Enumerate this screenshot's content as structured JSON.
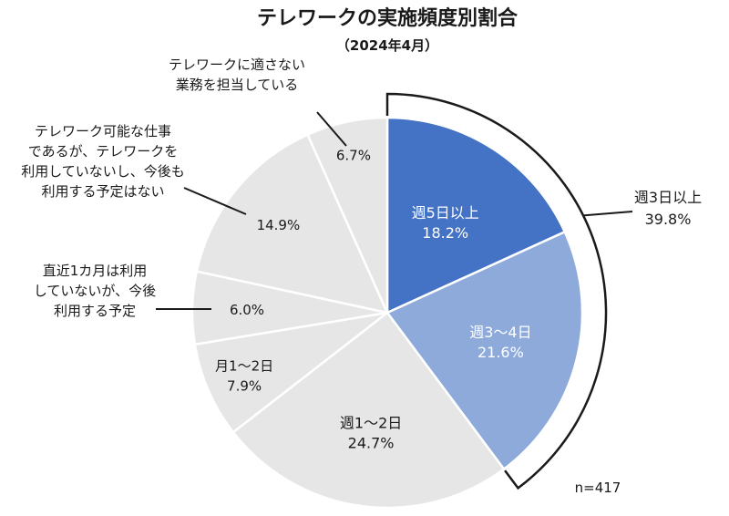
{
  "chart_data": {
    "type": "pie",
    "title": "テレワークの実施頻度別割合",
    "subtitle": "（2024年4月）",
    "note": "n=417",
    "slices": [
      {
        "name": "週5日以上",
        "label_lines": [
          "週5日以上"
        ],
        "value": 18.2,
        "value_label": "18.2%",
        "color": "#4472c4",
        "text_color": "#ffffff"
      },
      {
        "name": "週3～4日",
        "label_lines": [
          "週3～4日"
        ],
        "value": 21.6,
        "value_label": "21.6%",
        "color": "#8eaadb",
        "text_color": "#ffffff"
      },
      {
        "name": "週1～2日",
        "label_lines": [
          "週1～2日"
        ],
        "value": 24.7,
        "value_label": "24.7%",
        "color": "#e7e6e6",
        "text_color": "#1a1a1a"
      },
      {
        "name": "月1～2日",
        "label_lines": [
          "月1～2日"
        ],
        "value": 7.9,
        "value_label": "7.9%",
        "color": "#e7e6e6",
        "text_color": "#1a1a1a"
      },
      {
        "name": "直近1カ月は利用していないが、今後利用する予定",
        "label_lines": [
          "直近1カ月は利用",
          "していないが、今後",
          "利用する予定"
        ],
        "value": 6.0,
        "value_label": "6.0%",
        "color": "#e7e6e6",
        "text_color": "#1a1a1a"
      },
      {
        "name": "テレワーク可能な仕事であるが、テレワークを利用していないし、今後も利用する予定はない",
        "label_lines": [
          "テレワーク可能な仕事",
          "であるが、テレワークを",
          "利用していないし、今後も",
          "利用する予定はない"
        ],
        "value": 14.9,
        "value_label": "14.9%",
        "color": "#e7e6e6",
        "text_color": "#1a1a1a"
      },
      {
        "name": "テレワークに適さない業務を担当している",
        "label_lines": [
          "テレワークに適さない",
          "業務を担当している"
        ],
        "value": 6.7,
        "value_label": "6.7%",
        "color": "#e7e6e6",
        "text_color": "#1a1a1a"
      }
    ],
    "group_annotation": {
      "label": "週3日以上",
      "value": 39.8,
      "value_label": "39.8%",
      "covers": [
        "週5日以上",
        "週3～4日"
      ]
    }
  }
}
